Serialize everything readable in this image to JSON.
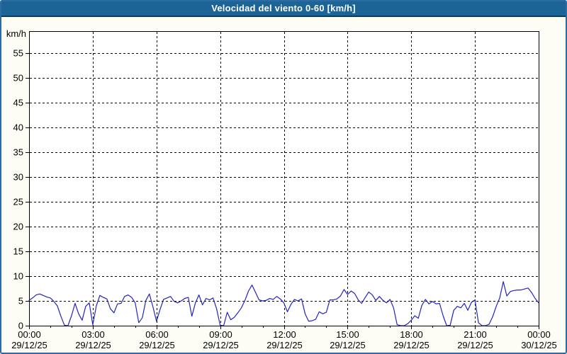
{
  "title": "Velocidad del viento 0-60 [km/h]",
  "colors": {
    "title_bar_bg": "#1d6496",
    "title_bar_border": "#0a3a5f",
    "frame_border": "#2b6da3",
    "page_bg": "#fdfdf6",
    "plot_bg": "#ffffff",
    "axis": "#000000",
    "grid": "#000000",
    "line": "#2323c3",
    "label_text": "#000000"
  },
  "chart_data": {
    "type": "line",
    "title": "Velocidad del viento 0-60 [km/h]",
    "ylabel": "km/h",
    "xlabel": "",
    "ylim": [
      0,
      60
    ],
    "y_tick_step": 5,
    "y_ticks": [
      0,
      5,
      10,
      15,
      20,
      25,
      30,
      35,
      40,
      45,
      50,
      55
    ],
    "grid": "dashed black; horizontal every 5 km/h, vertical every 3 h",
    "legend": "none",
    "x_ticks": [
      {
        "time": "00:00",
        "date": "29/12/25",
        "hour": 0
      },
      {
        "time": "03:00",
        "date": "29/12/25",
        "hour": 3
      },
      {
        "time": "06:00",
        "date": "29/12/25",
        "hour": 6
      },
      {
        "time": "09:00",
        "date": "29/12/25",
        "hour": 9
      },
      {
        "time": "12:00",
        "date": "29/12/25",
        "hour": 12
      },
      {
        "time": "15:00",
        "date": "29/12/25",
        "hour": 15
      },
      {
        "time": "18:00",
        "date": "29/12/25",
        "hour": 18
      },
      {
        "time": "21:00",
        "date": "29/12/25",
        "hour": 21
      },
      {
        "time": "00:00",
        "date": "30/12/25",
        "hour": 24
      }
    ],
    "x_minor_tick_every_hours": 1,
    "x_range_hours": [
      0,
      24
    ],
    "series": [
      {
        "name": "Velocidad del viento",
        "units": "km/h",
        "color": "#2323c3",
        "start": "29/12/25 00:00",
        "end": "30/12/25 00:00",
        "interval_minutes": 10,
        "values": [
          5.1,
          5.6,
          6.2,
          6.4,
          6.1,
          5.8,
          5.6,
          4.9,
          4.0,
          1.9,
          0.1,
          0.0,
          2.0,
          4.5,
          2.4,
          1.1,
          3.9,
          4.6,
          0.2,
          4.0,
          6.1,
          5.7,
          5.4,
          3.4,
          2.6,
          4.4,
          4.5,
          5.9,
          6.2,
          5.7,
          4.6,
          0.6,
          1.6,
          5.1,
          6.4,
          3.8,
          0.9,
          3.2,
          5.3,
          5.6,
          5.9,
          4.9,
          4.6,
          5.0,
          5.5,
          5.7,
          1.9,
          4.6,
          6.2,
          4.2,
          5.5,
          5.2,
          5.6,
          3.4,
          0.1,
          0.0,
          2.7,
          1.2,
          1.7,
          2.6,
          3.6,
          5.1,
          7.0,
          8.2,
          6.7,
          5.2,
          5.0,
          5.1,
          5.5,
          5.3,
          5.9,
          5.4,
          4.6,
          2.8,
          4.3,
          5.3,
          5.0,
          5.4,
          2.4,
          0.9,
          1.0,
          1.3,
          2.8,
          2.4,
          2.7,
          5.2,
          5.2,
          5.4,
          6.0,
          7.3,
          6.3,
          7.0,
          6.5,
          5.2,
          4.5,
          5.7,
          6.8,
          6.2,
          5.1,
          5.9,
          5.1,
          4.6,
          5.3,
          3.6,
          0.2,
          0.0,
          0.0,
          0.4,
          1.1,
          2.0,
          1.5,
          4.1,
          5.3,
          4.4,
          4.9,
          4.4,
          4.5,
          2.0,
          0.0,
          0.1,
          3.1,
          3.9,
          3.6,
          4.5,
          3.1,
          4.7,
          5.2,
          0.6,
          0.0,
          0.0,
          0.3,
          1.8,
          3.9,
          5.6,
          8.9,
          6.0,
          6.9,
          7.1,
          7.2,
          7.2,
          7.4,
          7.6,
          6.7,
          5.5,
          4.6
        ]
      }
    ]
  }
}
